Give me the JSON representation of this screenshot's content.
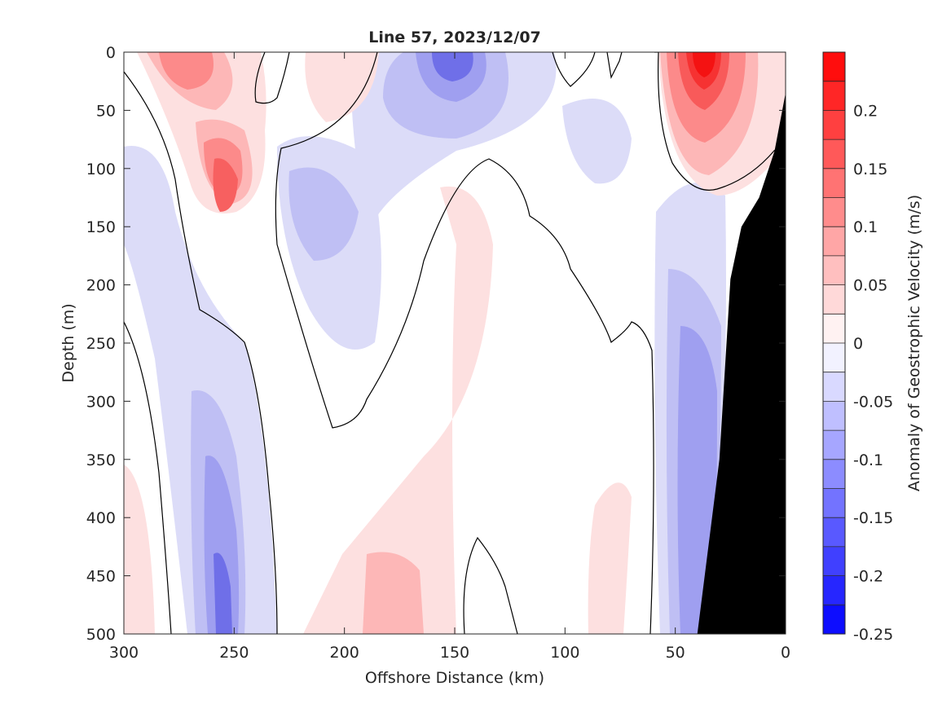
{
  "chart_data": {
    "type": "heatmap",
    "title": "Line 57, 2023/12/07",
    "xlabel": "Offshore Distance (km)",
    "ylabel": "Depth (m)",
    "xlim": [
      300,
      0
    ],
    "ylim": [
      0,
      500
    ],
    "x_reversed": true,
    "y_reversed": true,
    "x_ticks": [
      300,
      250,
      200,
      150,
      100,
      50,
      0
    ],
    "y_ticks": [
      0,
      50,
      100,
      150,
      200,
      250,
      300,
      350,
      400,
      450,
      500
    ],
    "colorbar": {
      "label": "Anomaly of Geostrophic Velocity (m/s)",
      "range": [
        -0.25,
        0.25
      ],
      "step": 0.025,
      "ticks": [
        0.2,
        0.15,
        0.1,
        0.05,
        0,
        -0.05,
        -0.1,
        -0.15,
        -0.2,
        -0.25
      ],
      "tick_labels": [
        "0.2",
        "0.15",
        "0.1",
        "0.05",
        "0",
        "-0.05",
        "-0.1",
        "-0.15",
        "-0.2",
        "-0.25"
      ],
      "colormap": "blue-white-red"
    },
    "features": [
      {
        "name": "surface-positive-core-270km",
        "x": 272,
        "depth": 0,
        "value": 0.1
      },
      {
        "name": "subsurface-positive-core-255km",
        "x": 255,
        "depth": 125,
        "value": 0.125
      },
      {
        "name": "surface-negative-core-155km",
        "x": 155,
        "depth": 10,
        "value": -0.175
      },
      {
        "name": "nearshore-positive-core-38km",
        "x": 38,
        "depth": 30,
        "value": 0.225
      },
      {
        "name": "deep-negative-core-255km",
        "x": 255,
        "depth": 480,
        "value": -0.125
      },
      {
        "name": "deep-negative-nearshore-40km",
        "x": 40,
        "depth": 450,
        "value": -0.1
      }
    ],
    "bathymetry": {
      "color": "#000000",
      "profile": [
        [
          35,
          500
        ],
        [
          40,
          500
        ],
        [
          30,
          350
        ],
        [
          25,
          195
        ],
        [
          20,
          150
        ],
        [
          12,
          125
        ],
        [
          5,
          85
        ],
        [
          0,
          35
        ]
      ]
    },
    "zero_contour": true
  }
}
